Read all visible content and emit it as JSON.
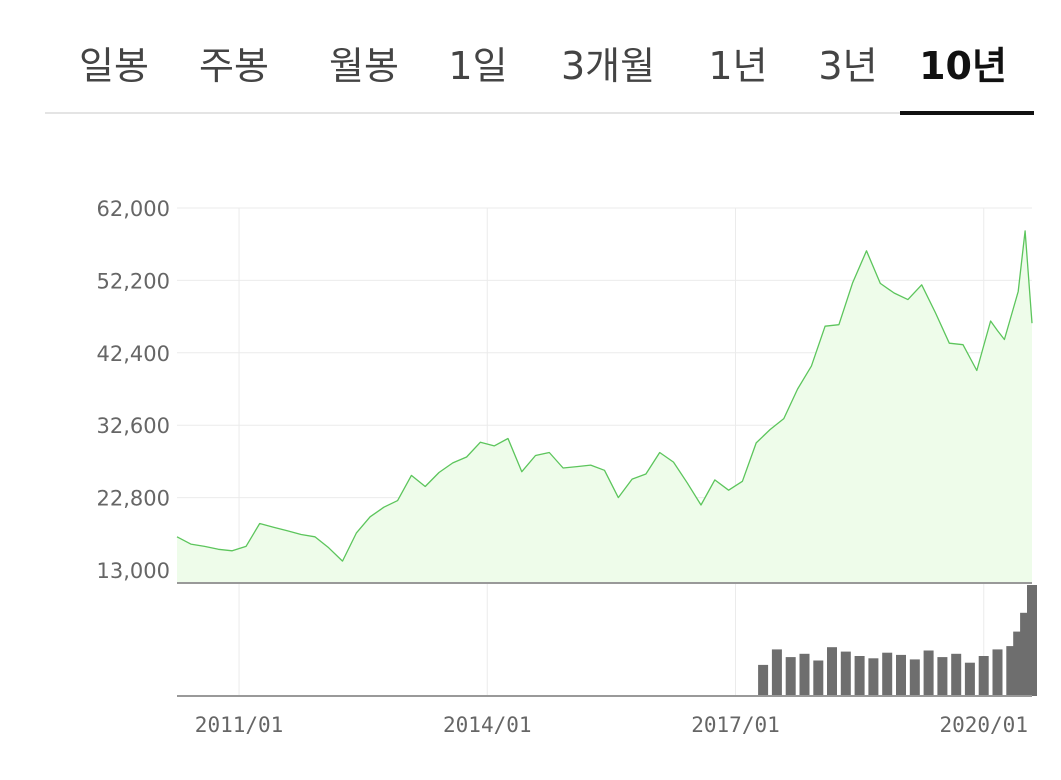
{
  "tabs": {
    "items": [
      {
        "label": "일봉",
        "active": false
      },
      {
        "label": "주봉",
        "active": false
      },
      {
        "label": "월봉",
        "active": false
      },
      {
        "label": "1일",
        "active": false
      },
      {
        "label": "3개월",
        "active": false
      },
      {
        "label": "1년",
        "active": false
      },
      {
        "label": "3년",
        "active": false
      },
      {
        "label": "10년",
        "active": true
      }
    ]
  },
  "colors": {
    "line": "#5cc55c",
    "area_fill": "#eefcea",
    "grid": "#ebebeb",
    "axis": "#999999",
    "volume": "#6e6e6e",
    "tick_text": "#666666"
  },
  "chart_data": {
    "type": "area",
    "title": "",
    "xlabel": "",
    "ylabel": "",
    "ylim": [
      13000,
      62000
    ],
    "y_ticks": [
      "62,000",
      "52,200",
      "42,400",
      "32,600",
      "22,800",
      "13,000"
    ],
    "y_tick_values": [
      62000,
      52200,
      42400,
      32600,
      22800,
      13000
    ],
    "x_ticks": [
      "2011/01",
      "2014/01",
      "2017/01",
      "2020/01"
    ],
    "x_range": [
      "2010/04",
      "2020/08"
    ],
    "grid": true,
    "legend": "none",
    "series": [
      {
        "kind": "price",
        "x": [
          "2010/04",
          "2010/06",
          "2010/08",
          "2010/10",
          "2010/12",
          "2011/02",
          "2011/04",
          "2011/06",
          "2011/08",
          "2011/10",
          "2011/12",
          "2012/02",
          "2012/04",
          "2012/06",
          "2012/08",
          "2012/10",
          "2012/12",
          "2013/02",
          "2013/04",
          "2013/06",
          "2013/08",
          "2013/10",
          "2013/12",
          "2014/02",
          "2014/04",
          "2014/06",
          "2014/08",
          "2014/10",
          "2014/12",
          "2015/02",
          "2015/04",
          "2015/06",
          "2015/08",
          "2015/10",
          "2015/12",
          "2016/02",
          "2016/04",
          "2016/06",
          "2016/08",
          "2016/10",
          "2016/12",
          "2017/02",
          "2017/04",
          "2017/06",
          "2017/08",
          "2017/10",
          "2017/12",
          "2018/02",
          "2018/04",
          "2018/06",
          "2018/08",
          "2018/10",
          "2018/12",
          "2019/02",
          "2019/04",
          "2019/06",
          "2019/08",
          "2019/10",
          "2019/12",
          "2020/02",
          "2020/03",
          "2020/04",
          "2020/06",
          "2020/07",
          "2020/08"
        ],
        "values": [
          17500,
          16500,
          16200,
          15800,
          15600,
          16200,
          19300,
          18800,
          18300,
          17800,
          17500,
          16000,
          14200,
          18000,
          20200,
          21500,
          22400,
          25800,
          24300,
          26200,
          27500,
          28300,
          30300,
          29800,
          30800,
          26300,
          28500,
          28900,
          26800,
          27000,
          27200,
          26500,
          22800,
          25300,
          26000,
          28900,
          27600,
          24800,
          21800,
          25200,
          23800,
          25000,
          30200,
          32000,
          33500,
          37500,
          40600,
          46000,
          46200,
          51900,
          56200,
          51800,
          50500,
          49600,
          51600,
          47800,
          43700,
          43500,
          40000,
          46700,
          45400,
          44200,
          50700,
          58900,
          46400
        ]
      },
      {
        "kind": "volume",
        "x": [
          "2017/05",
          "2017/07",
          "2017/09",
          "2017/11",
          "2018/01",
          "2018/03",
          "2018/05",
          "2018/07",
          "2018/09",
          "2018/11",
          "2019/01",
          "2019/03",
          "2019/05",
          "2019/07",
          "2019/09",
          "2019/11",
          "2020/01",
          "2020/03",
          "2020/05",
          "2020/06",
          "2020/07",
          "2020/08"
        ],
        "values": [
          0.28,
          0.42,
          0.35,
          0.38,
          0.32,
          0.44,
          0.4,
          0.36,
          0.34,
          0.39,
          0.37,
          0.33,
          0.41,
          0.35,
          0.38,
          0.3,
          0.36,
          0.42,
          0.45,
          0.58,
          0.75,
          1.0
        ]
      }
    ]
  }
}
